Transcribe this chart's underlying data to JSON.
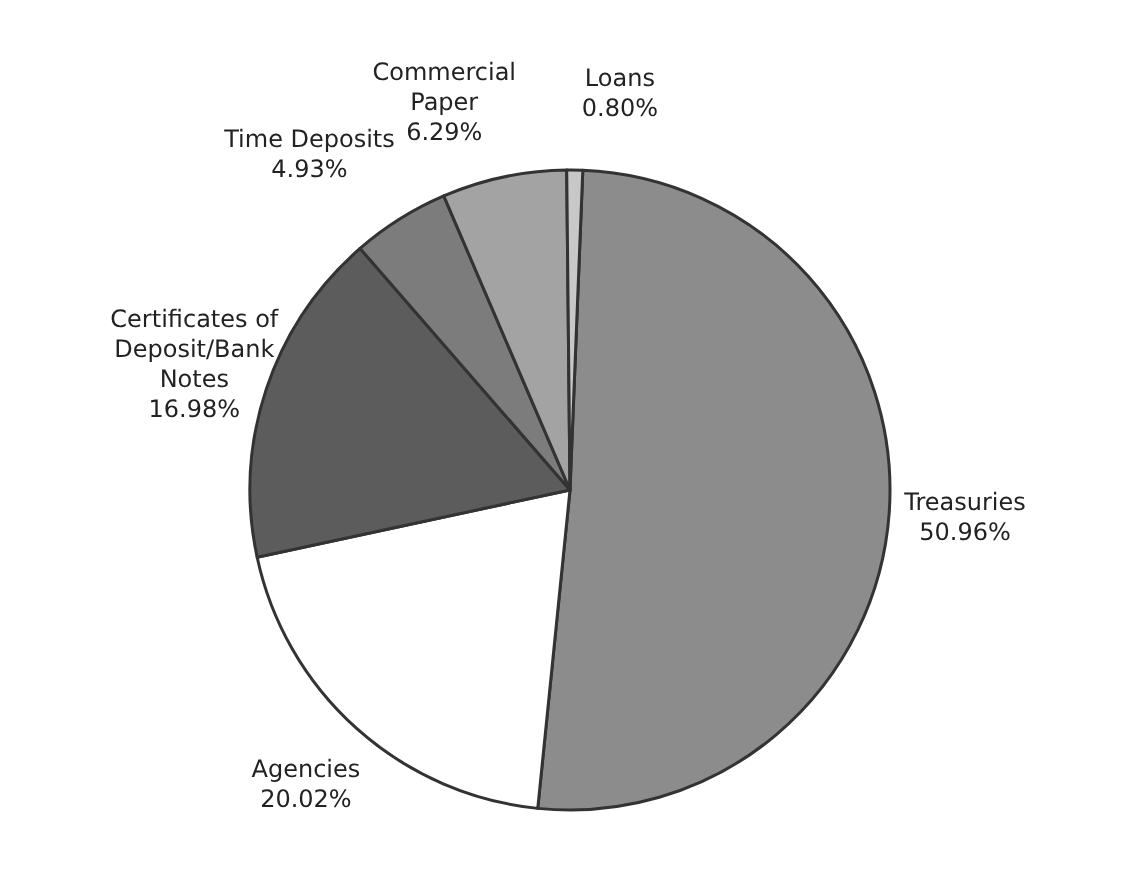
{
  "chart_data": {
    "type": "pie",
    "categories": [
      "Treasuries",
      "Agencies",
      "Certificates of Deposit/Bank Notes",
      "Time Deposits",
      "Commercial Paper",
      "Loans"
    ],
    "values": [
      50.96,
      20.02,
      16.98,
      4.93,
      6.29,
      0.8
    ],
    "value_labels": [
      "50.96%",
      "20.02%",
      "16.98%",
      "4.93%",
      "6.29%",
      "0.80%"
    ],
    "colors": [
      "#8c8c8c",
      "#ffffff",
      "#5c5c5c",
      "#7c7c7c",
      "#a3a3a3",
      "#c8c8c8"
    ]
  }
}
